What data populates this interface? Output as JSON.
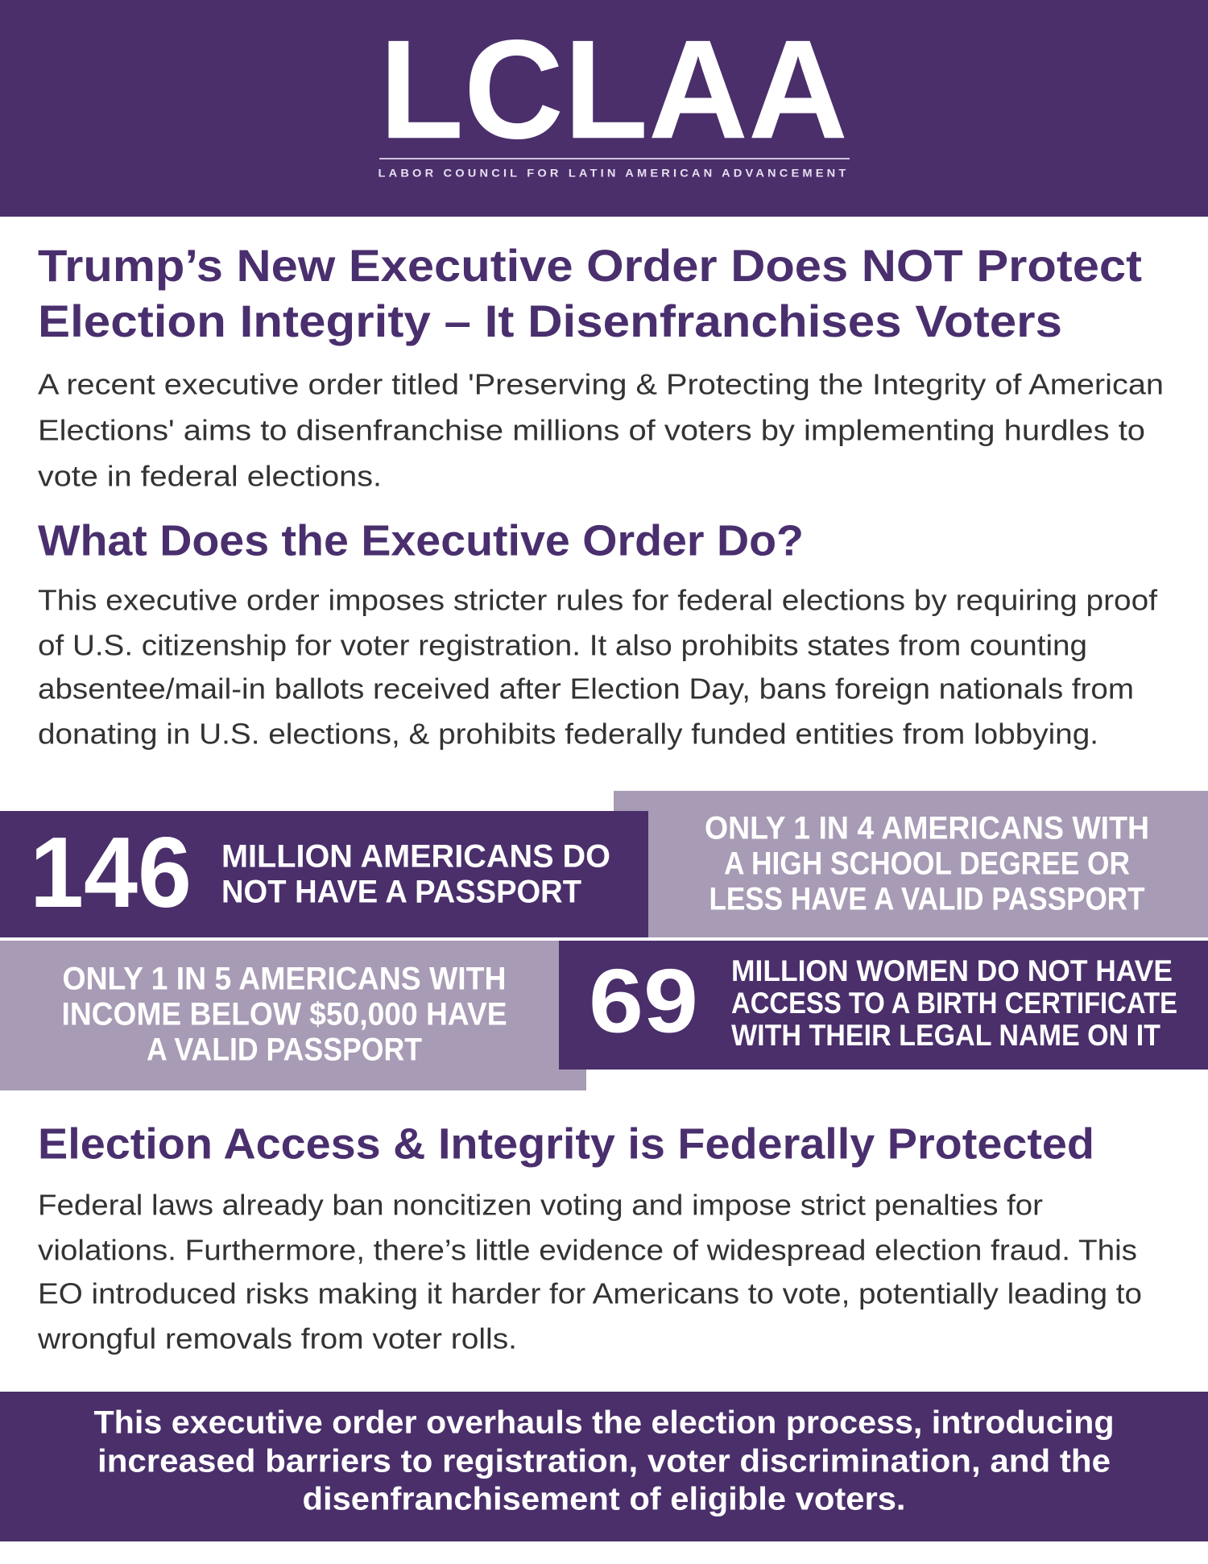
{
  "header": {
    "logo": "LCLAA",
    "tagline": "LABOR COUNCIL FOR LATIN AMERICAN ADVANCEMENT"
  },
  "title": [
    "Trump’s New Executive Order Does NOT Protect",
    "Election Integrity – It Disenfranchises Voters"
  ],
  "intro": [
    "A recent executive order titled 'Preserving & Protecting the Integrity of American",
    "Elections' aims to disenfranchise millions of voters by implementing hurdles to",
    "vote in federal elections."
  ],
  "section1": {
    "heading": "What Does the Executive Order Do?",
    "body": [
      "This executive order imposes stricter rules for federal elections by requiring proof",
      "of U.S. citizenship for voter registration. It also prohibits states from counting",
      "absentee/mail-in ballots received after Election Day, bans foreign nationals from",
      "donating in U.S. elections, & prohibits federally funded entities from lobbying."
    ]
  },
  "stats": [
    {
      "number": 146,
      "text": [
        "MILLION AMERICANS DO",
        "NOT HAVE A PASSPORT"
      ]
    },
    {
      "text": [
        "ONLY 1 IN 4 AMERICANS WITH",
        "A HIGH SCHOOL DEGREE OR",
        "LESS HAVE A VALID PASSPORT"
      ]
    },
    {
      "text": [
        "ONLY 1 IN 5 AMERICANS WITH",
        "INCOME BELOW $50,000 HAVE",
        "A VALID PASSPORT"
      ]
    },
    {
      "number": 69,
      "text": [
        "MILLION WOMEN DO NOT HAVE",
        "ACCESS TO A  BIRTH CERTIFICATE",
        "WITH THEIR LEGAL NAME ON IT"
      ]
    }
  ],
  "section2": {
    "heading": "Election Access & Integrity is Federally Protected",
    "body": [
      "Federal laws already ban noncitizen voting and impose strict penalties for",
      "violations. Furthermore, there’s little evidence of widespread election fraud. This",
      "EO introduced risks making it harder for Americans to vote, potentially leading to",
      "wrongful removals from voter rolls."
    ]
  },
  "footer": [
    "This executive order overhauls the election process, introducing",
    "increased barriers to registration, voter discrimination, and the",
    "disenfranchisement of eligible voters."
  ]
}
